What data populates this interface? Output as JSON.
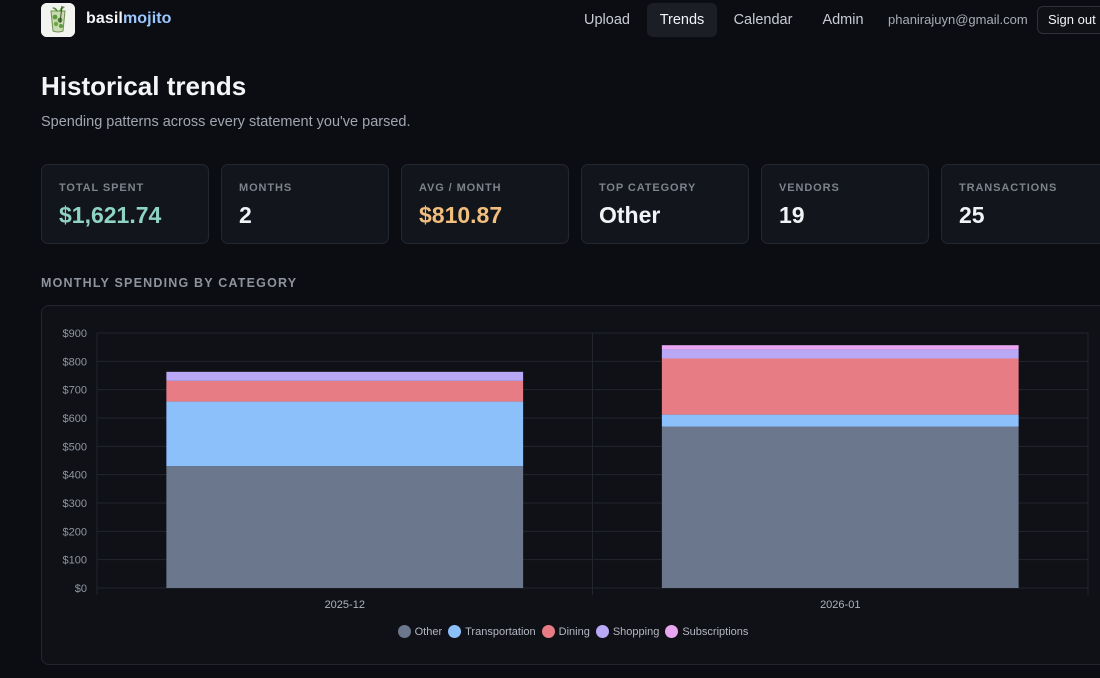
{
  "header": {
    "brand_part1": "basil",
    "brand_part2": "mojito",
    "nav": [
      {
        "label": "Upload"
      },
      {
        "label": "Trends"
      },
      {
        "label": "Calendar"
      },
      {
        "label": "Admin"
      }
    ],
    "active_nav": "Trends",
    "user_email": "phanirajuyn@gmail.com",
    "signout_label": "Sign out",
    "logo_icon": "mojito-glass-icon"
  },
  "page": {
    "title": "Historical trends",
    "subtitle": "Spending patterns across every statement you've parsed."
  },
  "stats": [
    {
      "label": "TOTAL SPENT",
      "value": "$1,621.74",
      "color": "#8fd3c4"
    },
    {
      "label": "MONTHS",
      "value": "2",
      "color": "#f1f3f6"
    },
    {
      "label": "AVG / MONTH",
      "value": "$810.87",
      "color": "#f2be7d"
    },
    {
      "label": "TOP CATEGORY",
      "value": "Other",
      "color": "#f1f3f6"
    },
    {
      "label": "VENDORS",
      "value": "19",
      "color": "#f1f3f6"
    },
    {
      "label": "TRANSACTIONS",
      "value": "25",
      "color": "#f1f3f6"
    }
  ],
  "section_title": "MONTHLY SPENDING BY CATEGORY",
  "chart_data": {
    "type": "bar",
    "stacked": true,
    "categories": [
      "2025-12",
      "2026-01"
    ],
    "series": [
      {
        "name": "Other",
        "color": "#6b778c",
        "values": [
          430,
          570
        ]
      },
      {
        "name": "Transportation",
        "color": "#8cc0fa",
        "values": [
          228,
          42
        ]
      },
      {
        "name": "Dining",
        "color": "#e87c84",
        "values": [
          73,
          198
        ]
      },
      {
        "name": "Shopping",
        "color": "#b8a8f5",
        "values": [
          32,
          32
        ]
      },
      {
        "name": "Subscriptions",
        "color": "#e8a6f0",
        "values": [
          0,
          15
        ]
      }
    ],
    "ylim": [
      0,
      900
    ],
    "y_ticks": [
      "$0",
      "$100",
      "$200",
      "$300",
      "$400",
      "$500",
      "$600",
      "$700",
      "$800",
      "$900"
    ],
    "grid": true,
    "legend_position": "bottom-center"
  }
}
